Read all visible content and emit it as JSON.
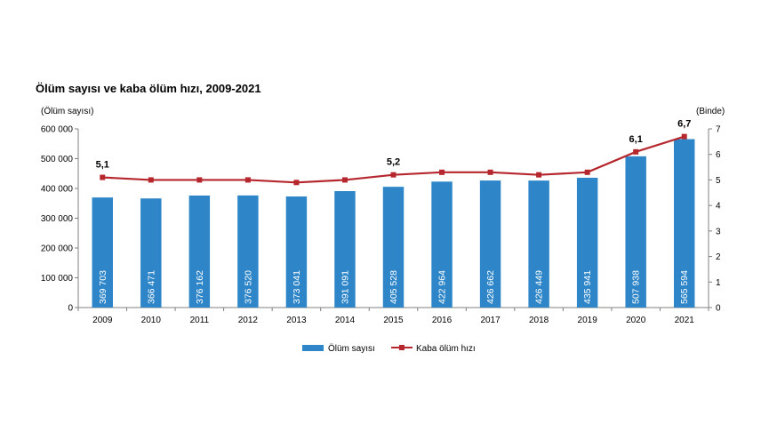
{
  "chart_data": {
    "type": "bar",
    "title": "Ölüm sayısı ve kaba ölüm hızı, 2009-2021",
    "ylabel_left": "(Ölüm sayısı)",
    "ylabel_right": "(Binde)",
    "categories": [
      "2009",
      "2010",
      "2011",
      "2012",
      "2013",
      "2014",
      "2015",
      "2016",
      "2017",
      "2018",
      "2019",
      "2020",
      "2021"
    ],
    "series": [
      {
        "name": "Ölüm sayısı",
        "type": "bar",
        "axis": "left",
        "color": "#2e86c8",
        "values": [
          369703,
          366471,
          376162,
          376520,
          373041,
          391091,
          405528,
          422964,
          426662,
          426449,
          435941,
          507938,
          565594
        ],
        "value_labels": [
          "369 703",
          "366 471",
          "376 162",
          "376 520",
          "373 041",
          "391 091",
          "405 528",
          "422 964",
          "426 662",
          "426 449",
          "435 941",
          "507 938",
          "565 594"
        ]
      },
      {
        "name": "Kaba ölüm hızı",
        "type": "line",
        "axis": "right",
        "color": "#b5272d",
        "values": [
          5.1,
          5.0,
          5.0,
          5.0,
          4.9,
          5.0,
          5.2,
          5.3,
          5.3,
          5.2,
          5.3,
          6.1,
          6.7
        ],
        "point_labels": {
          "0": "5,1",
          "6": "5,2",
          "11": "6,1",
          "12": "6,7"
        }
      }
    ],
    "ylim_left": [
      0,
      600000
    ],
    "left_ticks": [
      "0",
      "100 000",
      "200 000",
      "300 000",
      "400 000",
      "500 000",
      "600 000"
    ],
    "ylim_right": [
      0,
      7
    ],
    "right_ticks": [
      "0",
      "1",
      "2",
      "3",
      "4",
      "5",
      "6",
      "7"
    ],
    "grid": false,
    "legend_position": "bottom"
  }
}
